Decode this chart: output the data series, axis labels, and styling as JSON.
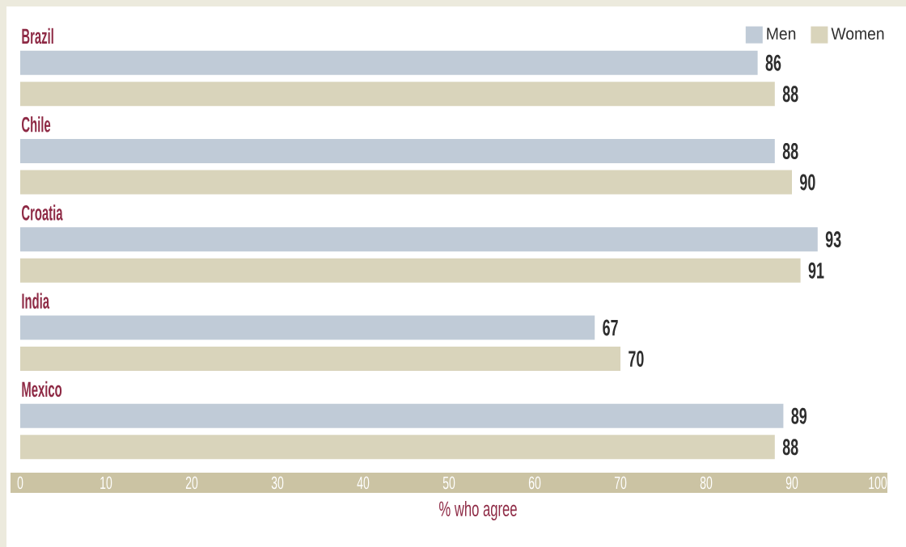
{
  "chart_data": {
    "type": "bar",
    "orientation": "horizontal",
    "categories": [
      "Brazil",
      "Chile",
      "Croatia",
      "India",
      "Mexico"
    ],
    "series": [
      {
        "name": "Men",
        "color": "#c0cbd7",
        "values": [
          86,
          88,
          93,
          67,
          89
        ]
      },
      {
        "name": "Women",
        "color": "#d9d4bb",
        "values": [
          88,
          90,
          91,
          70,
          88
        ]
      }
    ],
    "xlabel": "% who agree",
    "xlim": [
      0,
      100
    ],
    "xticks": [
      0,
      10,
      20,
      30,
      40,
      50,
      60,
      70,
      80,
      90,
      100
    ],
    "data_labels": true,
    "legend": "top right",
    "grid": false
  }
}
